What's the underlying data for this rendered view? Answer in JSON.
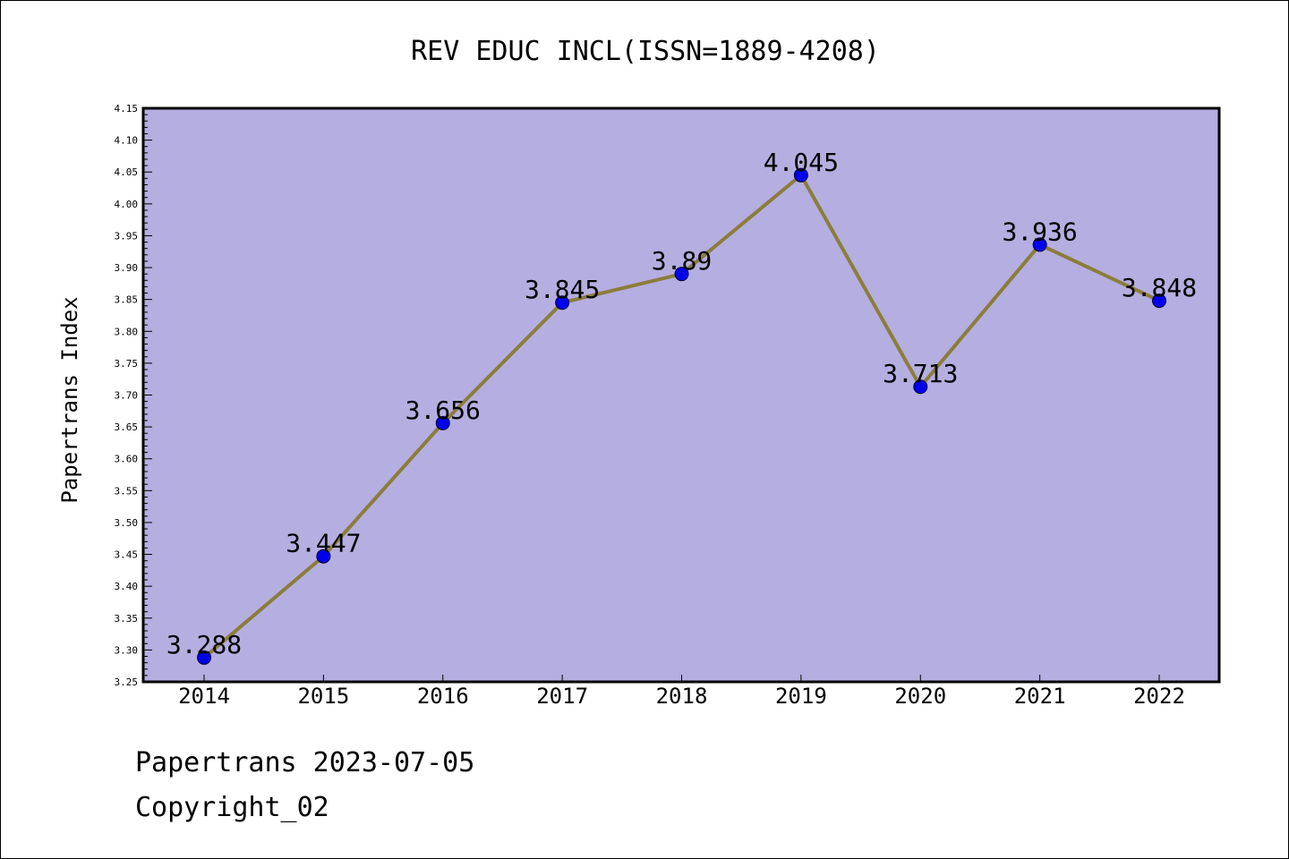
{
  "chart_data": {
    "type": "line",
    "title": "REV EDUC INCL(ISSN=1889-4208)",
    "xlabel": "",
    "ylabel": "Papertrans Index",
    "categories": [
      "2014",
      "2015",
      "2016",
      "2017",
      "2018",
      "2019",
      "2020",
      "2021",
      "2022"
    ],
    "values": [
      3.288,
      3.447,
      3.656,
      3.845,
      3.89,
      4.045,
      3.713,
      3.936,
      3.848
    ],
    "value_labels": [
      "3.288",
      "3.447",
      "3.656",
      "3.845",
      "3.89",
      "4.045",
      "3.713",
      "3.936",
      "3.848"
    ],
    "ylim": [
      3.25,
      4.15
    ],
    "yticks": [
      "3.25",
      "3.30",
      "3.35",
      "3.40",
      "3.45",
      "3.50",
      "3.55",
      "3.60",
      "3.65",
      "3.70",
      "3.75",
      "3.80",
      "3.85",
      "3.90",
      "3.95",
      "4.00",
      "4.05",
      "4.10",
      "4.15"
    ],
    "grid": false,
    "colors": {
      "plot_background": "#b5aee0",
      "line": "#8b7d3a",
      "marker": "#0000ee"
    }
  },
  "footer": {
    "line1": "Papertrans 2023-07-05",
    "line2": "Copyright_02"
  }
}
